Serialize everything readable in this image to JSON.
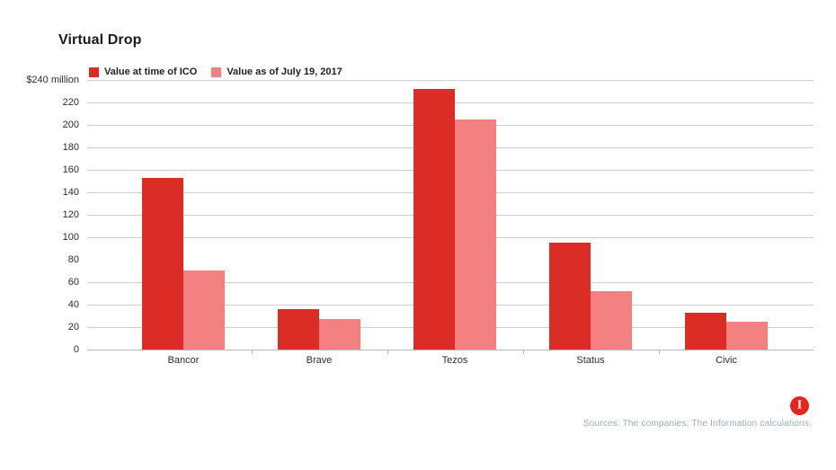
{
  "title": "Virtual Drop",
  "chart_data": {
    "type": "bar",
    "title": "Virtual Drop",
    "categories": [
      "Bancor",
      "Brave",
      "Tezos",
      "Status",
      "Civic"
    ],
    "series": [
      {
        "name": "Value at time of ICO",
        "color": "#dc2c26",
        "values": [
          153,
          36,
          232,
          95,
          33
        ]
      },
      {
        "name": "Value as of July 19, 2017",
        "color": "#f48181",
        "values": [
          70,
          27,
          205,
          52,
          25
        ]
      }
    ],
    "ylabel_top": "$240 million",
    "y_ticks": [
      0,
      20,
      40,
      60,
      80,
      100,
      120,
      140,
      160,
      180,
      200,
      220,
      240
    ],
    "ylim": [
      0,
      240
    ],
    "gridlines_skip": [
      80
    ],
    "grid": true,
    "legend_position": "top-left"
  },
  "footer": {
    "sources": "Sources: The companies; The Information calculations.",
    "logo_letter": "I"
  },
  "colors": {
    "bar_dark": "#dc2c26",
    "bar_light": "#f48181",
    "gridline": "#cdcdcd",
    "baseline": "#b9b9b9",
    "sources_text": "#99abba",
    "logo_background": "#e6251c"
  }
}
